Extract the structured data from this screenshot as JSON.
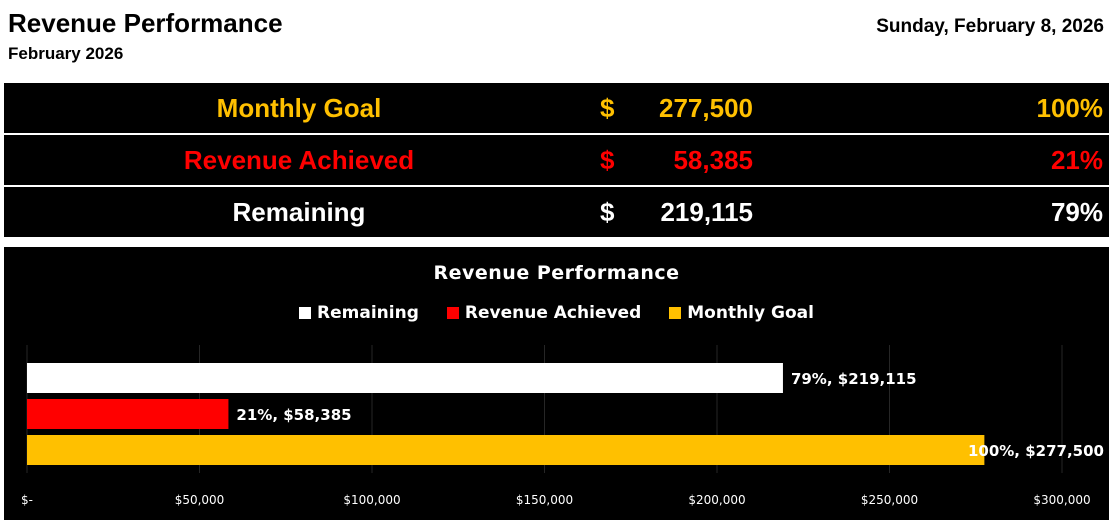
{
  "header": {
    "title": "Revenue Performance",
    "subtitle": "February 2026",
    "date": "Sunday, February 8, 2026"
  },
  "summary": [
    {
      "label": "Monthly Goal",
      "currency": "$",
      "amount": "277,500",
      "percent": "100%",
      "color": "#FFC000"
    },
    {
      "label": "Revenue Achieved",
      "currency": "$",
      "amount": "58,385",
      "percent": "21%",
      "color": "#FF0000"
    },
    {
      "label": "Remaining",
      "currency": "$",
      "amount": "219,115",
      "percent": "79%",
      "color": "#FFFFFF"
    }
  ],
  "chart_data": {
    "type": "bar",
    "orientation": "horizontal",
    "title": "Revenue Performance",
    "legend": [
      {
        "name": "Remaining",
        "color": "#FFFFFF"
      },
      {
        "name": "Revenue Achieved",
        "color": "#FF0000"
      },
      {
        "name": "Monthly Goal",
        "color": "#FFC000"
      }
    ],
    "legend_position": "top",
    "bars": [
      {
        "category": "Remaining",
        "value": 219115,
        "color": "#FFFFFF",
        "label": "79%,  $219,115"
      },
      {
        "category": "Revenue Achieved",
        "value": 58385,
        "color": "#FF0000",
        "label": "21%,  $58,385"
      },
      {
        "category": "Monthly Goal",
        "value": 277500,
        "color": "#FFC000",
        "label": "100%,  $277,500"
      }
    ],
    "xlim": [
      0,
      300000
    ],
    "xticks": [
      0,
      50000,
      100000,
      150000,
      200000,
      250000,
      300000
    ],
    "xtick_labels": [
      "$-",
      "$50,000",
      "$100,000",
      "$150,000",
      "$200,000",
      "$250,000",
      "$300,000"
    ],
    "grid": true,
    "background": "#000000"
  }
}
